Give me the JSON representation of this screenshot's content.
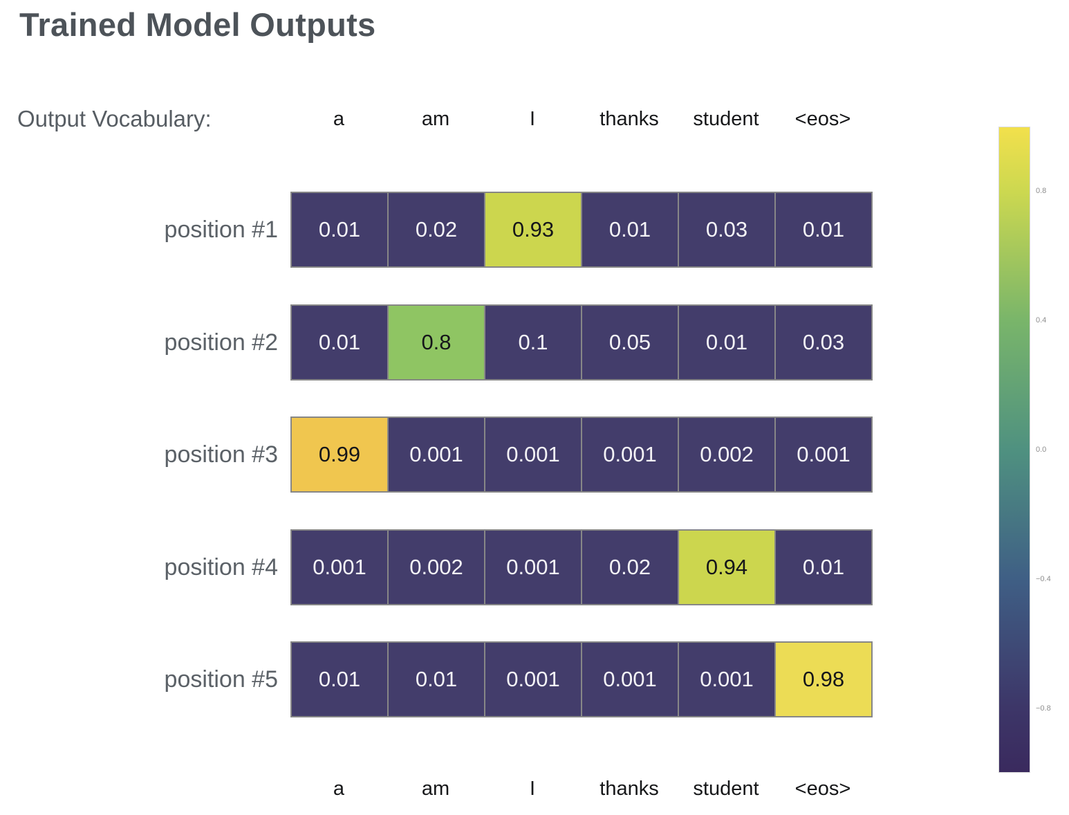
{
  "page": {
    "title": "Trained Model Outputs"
  },
  "vocab_header": {
    "label": "Output Vocabulary:"
  },
  "chart_data": {
    "type": "heatmap",
    "title": "Trained Model Outputs",
    "columns": [
      "a",
      "am",
      "I",
      "thanks",
      "student",
      "<eos>"
    ],
    "rows": [
      {
        "label": "position #1",
        "cells": [
          {
            "value": 0.01,
            "text": "0.01"
          },
          {
            "value": 0.02,
            "text": "0.02"
          },
          {
            "value": 0.93,
            "text": "0.93",
            "color": "#ccd64e",
            "text_color": "#15161a"
          },
          {
            "value": 0.01,
            "text": "0.01"
          },
          {
            "value": 0.03,
            "text": "0.03"
          },
          {
            "value": 0.01,
            "text": "0.01"
          }
        ]
      },
      {
        "label": "position #2",
        "cells": [
          {
            "value": 0.01,
            "text": "0.01"
          },
          {
            "value": 0.8,
            "text": "0.8",
            "color": "#8fc563",
            "text_color": "#15161a"
          },
          {
            "value": 0.1,
            "text": "0.1"
          },
          {
            "value": 0.05,
            "text": "0.05"
          },
          {
            "value": 0.01,
            "text": "0.01"
          },
          {
            "value": 0.03,
            "text": "0.03"
          }
        ]
      },
      {
        "label": "position #3",
        "cells": [
          {
            "value": 0.99,
            "text": "0.99",
            "color": "#f0c64f",
            "text_color": "#15161a"
          },
          {
            "value": 0.001,
            "text": "0.001"
          },
          {
            "value": 0.001,
            "text": "0.001"
          },
          {
            "value": 0.001,
            "text": "0.001"
          },
          {
            "value": 0.002,
            "text": "0.002"
          },
          {
            "value": 0.001,
            "text": "0.001"
          }
        ]
      },
      {
        "label": "position #4",
        "cells": [
          {
            "value": 0.001,
            "text": "0.001"
          },
          {
            "value": 0.002,
            "text": "0.002"
          },
          {
            "value": 0.001,
            "text": "0.001"
          },
          {
            "value": 0.02,
            "text": "0.02"
          },
          {
            "value": 0.94,
            "text": "0.94",
            "color": "#ccd64e",
            "text_color": "#15161a"
          },
          {
            "value": 0.01,
            "text": "0.01"
          }
        ]
      },
      {
        "label": "position #5",
        "cells": [
          {
            "value": 0.01,
            "text": "0.01"
          },
          {
            "value": 0.01,
            "text": "0.01"
          },
          {
            "value": 0.001,
            "text": "0.001"
          },
          {
            "value": 0.001,
            "text": "0.001"
          },
          {
            "value": 0.001,
            "text": "0.001"
          },
          {
            "value": 0.98,
            "text": "0.98",
            "color": "#ecdc55",
            "text_color": "#15161a"
          }
        ]
      }
    ],
    "base_cell_color": "#433d6b",
    "base_text_color": "#f4f3f6",
    "colorbar": {
      "range": [
        -1,
        1
      ],
      "ticks": [
        {
          "value": 0.8,
          "label": "0.8"
        },
        {
          "value": 0.4,
          "label": "0.4"
        },
        {
          "value": 0.0,
          "label": "0.0"
        },
        {
          "value": -0.4,
          "label": "−0.4"
        },
        {
          "value": -0.8,
          "label": "−0.8"
        }
      ],
      "gradient_stops": [
        {
          "pos": 0,
          "color": "#f2e04c"
        },
        {
          "pos": 10,
          "color": "#ccd850"
        },
        {
          "pos": 30,
          "color": "#79b56a"
        },
        {
          "pos": 50,
          "color": "#4f9180"
        },
        {
          "pos": 70,
          "color": "#3f5f85"
        },
        {
          "pos": 90,
          "color": "#3d3668"
        },
        {
          "pos": 100,
          "color": "#3a2a5e"
        }
      ]
    },
    "layout_hints": {
      "grid_on": false,
      "legend": "colorbar-right",
      "x_axis_labels": "top-and-bottom"
    }
  }
}
